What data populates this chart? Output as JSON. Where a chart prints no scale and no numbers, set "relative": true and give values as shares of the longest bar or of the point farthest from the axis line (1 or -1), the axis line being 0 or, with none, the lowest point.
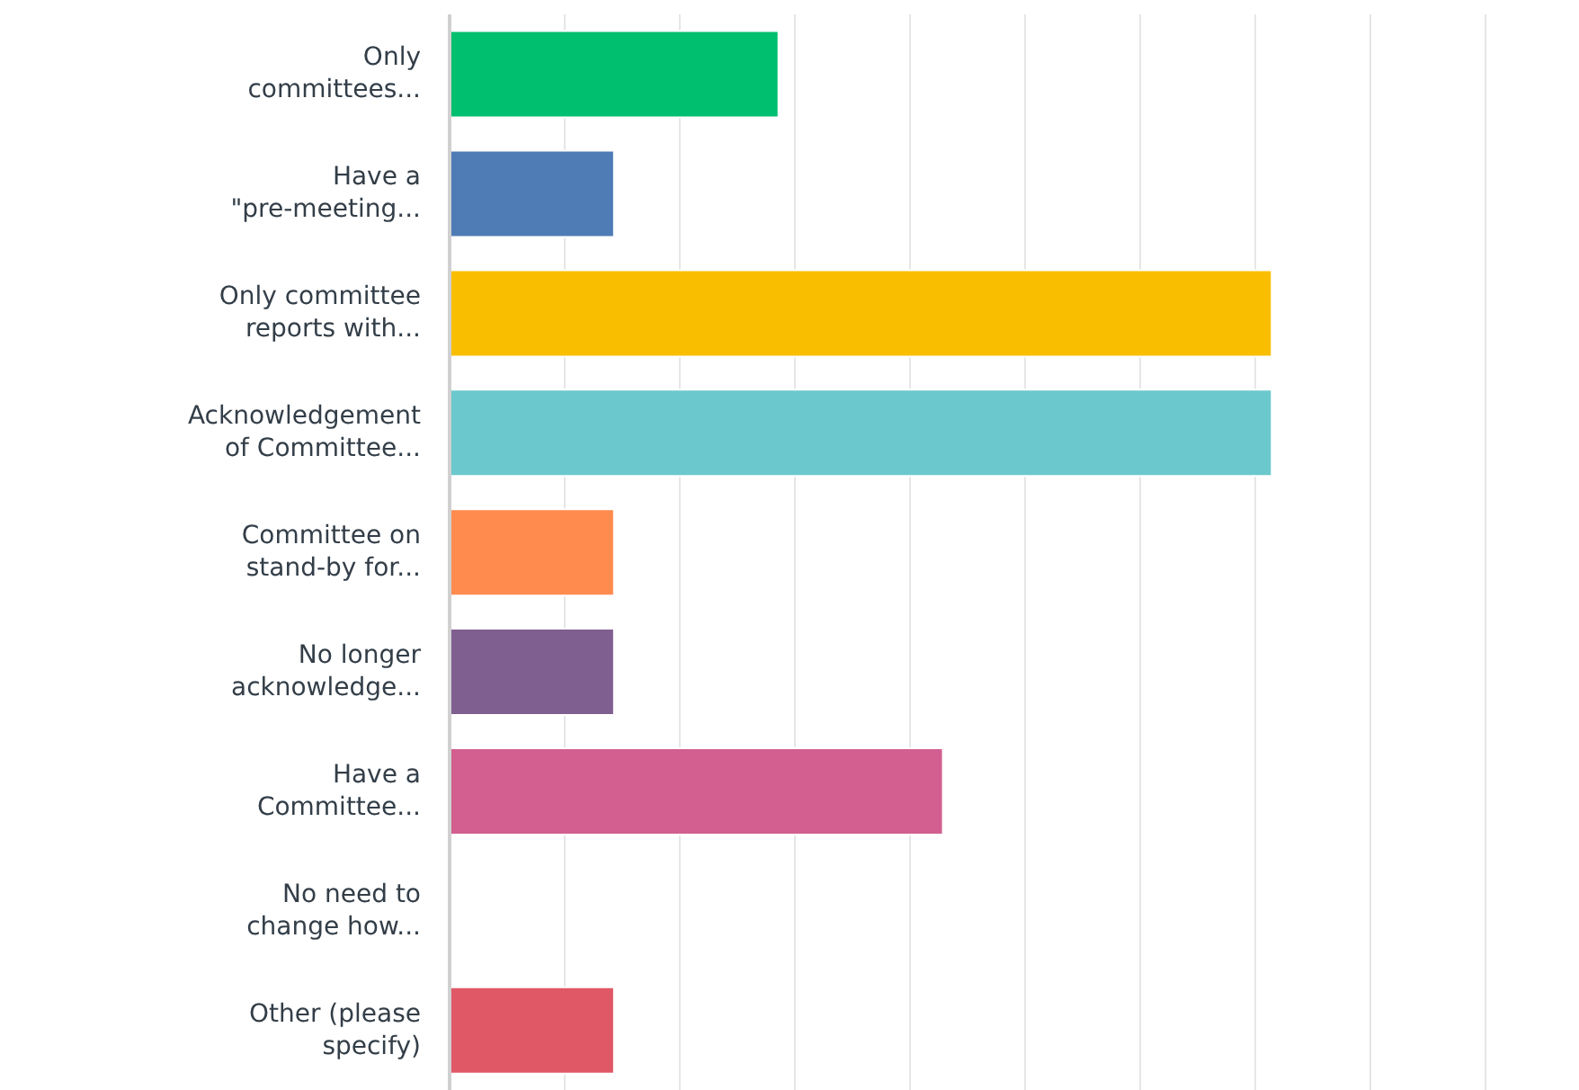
{
  "chart_data": {
    "type": "bar",
    "orientation": "horizontal",
    "relative": true,
    "grid": "x",
    "categories": [
      "Only committees...",
      "Have a \"pre-meeting...",
      "Only committee reports with...",
      "Acknowledgement of Committee...",
      "Committee on stand-by for...",
      "No longer acknowledge...",
      "Have a Committee...",
      "No need to change how...",
      "Other (please specify)"
    ],
    "values": [
      0.4,
      0.2,
      1,
      1,
      0.2,
      0.2,
      0.6,
      0,
      0.2
    ],
    "colors": [
      "#00bf6f",
      "#507cb6",
      "#f9be00",
      "#6bc8cd",
      "#ff8b4f",
      "#7f5f90",
      "#d25f90",
      "#999999",
      "#e05766"
    ]
  }
}
